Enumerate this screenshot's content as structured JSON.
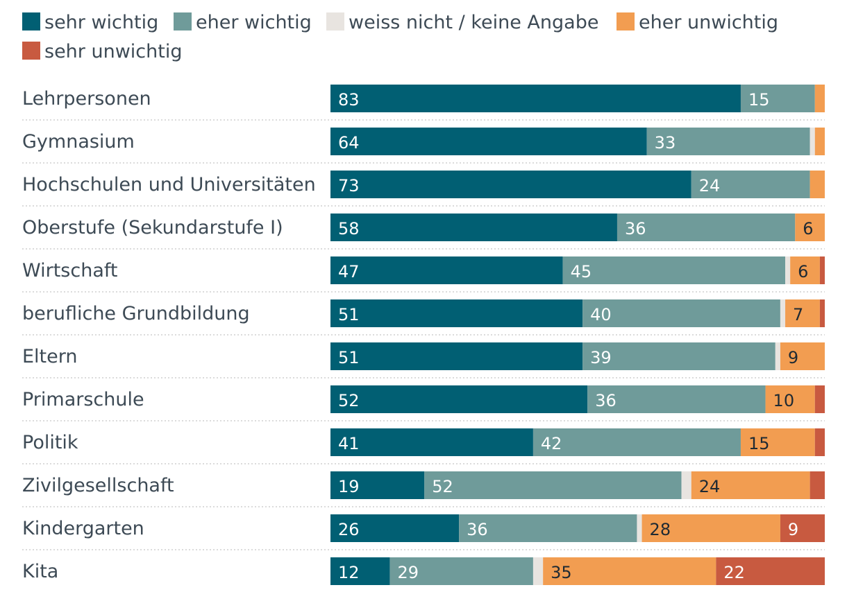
{
  "chart_data": {
    "type": "bar",
    "orientation": "horizontal",
    "stacked": true,
    "xlim": [
      0,
      100
    ],
    "legend_position": "top-left",
    "legend": [
      {
        "key": "sw",
        "label": "sehr wichtig",
        "color": "#015f73"
      },
      {
        "key": "ew",
        "label": "eher wichtig",
        "color": "#6f9b9a"
      },
      {
        "key": "wn",
        "label": "weiss nicht / keine Angabe",
        "color": "#e8e4e0"
      },
      {
        "key": "eu",
        "label": "eher unwichtig",
        "color": "#f29d51"
      },
      {
        "key": "su",
        "label": "sehr unwichtig",
        "color": "#c85a40"
      }
    ],
    "categories": [
      "Lehrpersonen",
      "Gymnasium",
      "Hochschulen und Universitäten",
      "Oberstufe (Sekundarstufe I)",
      "Wirtschaft",
      "berufliche Grundbildung",
      "Eltern",
      "Primarschule",
      "Politik",
      "Zivilgesellschaft",
      "Kindergarten",
      "Kita"
    ],
    "series": [
      {
        "name": "sehr wichtig",
        "values": [
          83,
          64,
          73,
          58,
          47,
          51,
          51,
          52,
          41,
          19,
          26,
          12
        ]
      },
      {
        "name": "eher wichtig",
        "values": [
          15,
          33,
          24,
          36,
          45,
          40,
          39,
          36,
          42,
          52,
          36,
          29
        ]
      },
      {
        "name": "weiss nicht / keine Angabe",
        "values": [
          0,
          1,
          0,
          0,
          1,
          1,
          1,
          0,
          0,
          2,
          1,
          2
        ]
      },
      {
        "name": "eher unwichtig",
        "values": [
          2,
          2,
          3,
          6,
          6,
          7,
          9,
          10,
          15,
          24,
          28,
          35
        ]
      },
      {
        "name": "sehr unwichtig",
        "values": [
          0,
          0,
          0,
          0,
          1,
          1,
          0,
          2,
          2,
          3,
          9,
          22
        ]
      }
    ],
    "labels": [
      [
        "83",
        "15",
        "",
        "",
        ""
      ],
      [
        "64",
        "33",
        "",
        "",
        ""
      ],
      [
        "73",
        "24",
        "",
        "",
        ""
      ],
      [
        "58",
        "36",
        "",
        "6",
        ""
      ],
      [
        "47",
        "45",
        "",
        "6",
        ""
      ],
      [
        "51",
        "40",
        "",
        "7",
        ""
      ],
      [
        "51",
        "39",
        "",
        "9",
        ""
      ],
      [
        "52",
        "36",
        "",
        "10",
        ""
      ],
      [
        "41",
        "42",
        "",
        "15",
        ""
      ],
      [
        "19",
        "52",
        "",
        "24",
        ""
      ],
      [
        "26",
        "36",
        "",
        "28",
        "9"
      ],
      [
        "12",
        "29",
        "",
        "35",
        "22"
      ]
    ]
  }
}
